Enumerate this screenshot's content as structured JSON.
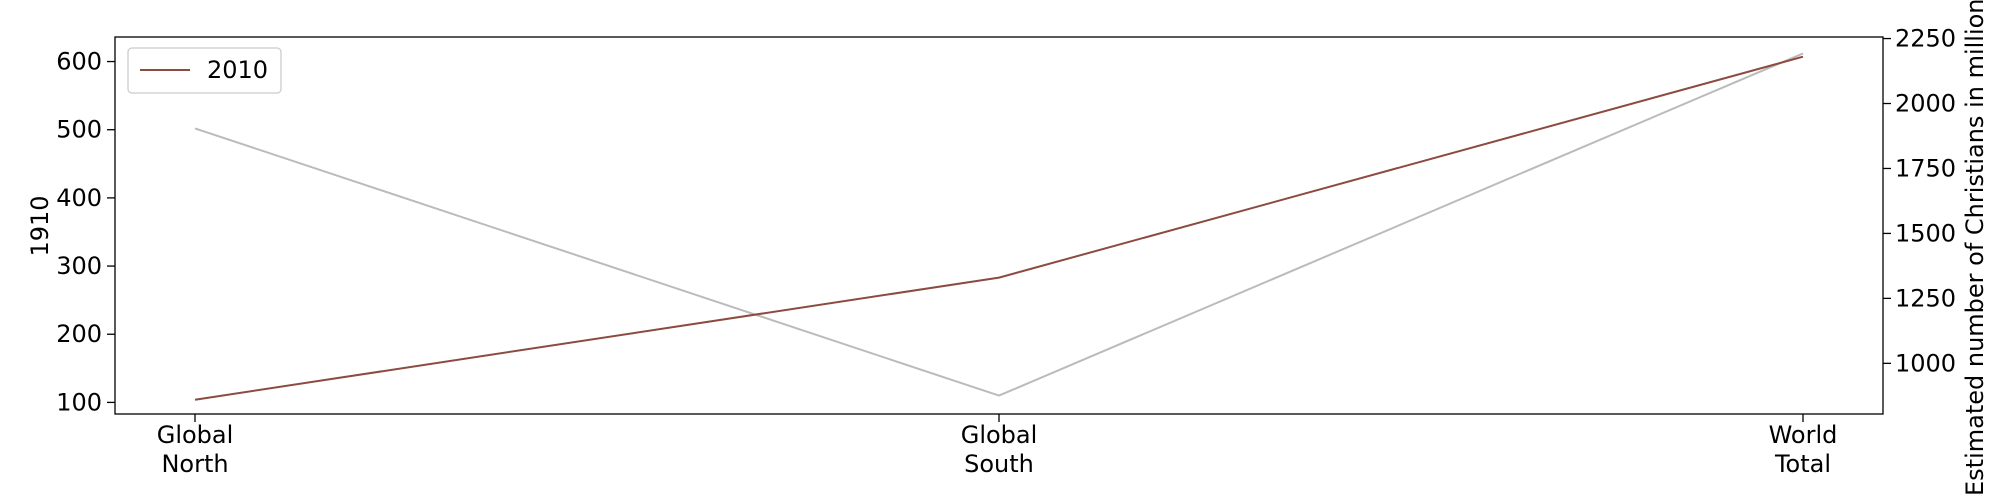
{
  "chart_data": {
    "type": "line",
    "categories": [
      [
        "Global",
        "North"
      ],
      [
        "Global",
        "South"
      ],
      [
        "World",
        "Total"
      ]
    ],
    "series": [
      {
        "name": "1910",
        "axis": "left",
        "color": "#bbbbbb",
        "values": [
          502,
          110,
          612
        ]
      },
      {
        "name": "2010",
        "axis": "right",
        "color": "#8c4b40",
        "values": [
          860,
          1330,
          2180
        ]
      }
    ],
    "y_left": {
      "label": "1910",
      "ylim": [
        83,
        636
      ],
      "ticks": [
        "100",
        "200",
        "300",
        "400",
        "500",
        "600"
      ]
    },
    "y_right": {
      "label": "Estimated number of Christians in millions",
      "ylim": [
        805,
        2256
      ],
      "ticks": [
        "1000",
        "1250",
        "1500",
        "1750",
        "2000",
        "2250"
      ]
    },
    "legend": {
      "entries": [
        "2010"
      ],
      "placement": "top-left"
    },
    "grid": false
  }
}
